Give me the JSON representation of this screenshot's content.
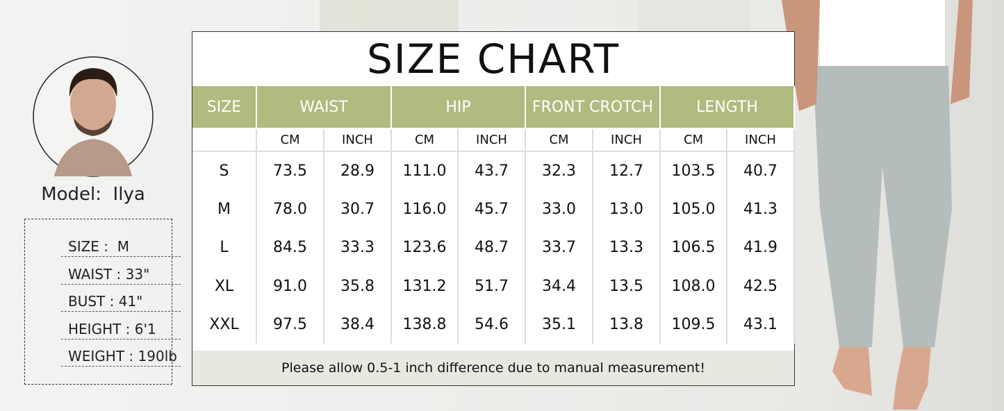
{
  "title": "SIZE CHART",
  "model": {
    "label": "Model:  Ilya",
    "stats": [
      "SIZE :  M",
      "WAIST : 33\"",
      "BUST : 41\"",
      "HEIGHT : 6'1",
      "WEIGHT : 190lb"
    ]
  },
  "table": {
    "groups": [
      "SIZE",
      "WAIST",
      "HIP",
      "FRONT CROTCH",
      "LENGTH"
    ],
    "units": [
      "CM",
      "INCH",
      "CM",
      "INCH",
      "CM",
      "INCH",
      "CM",
      "INCH"
    ],
    "rows": [
      [
        "S",
        "73.5",
        "28.9",
        "111.0",
        "43.7",
        "32.3",
        "12.7",
        "103.5",
        "40.7"
      ],
      [
        "M",
        "78.0",
        "30.7",
        "116.0",
        "45.7",
        "33.0",
        "13.0",
        "105.0",
        "41.3"
      ],
      [
        "L",
        "84.5",
        "33.3",
        "123.6",
        "48.7",
        "33.7",
        "13.3",
        "106.5",
        "41.9"
      ],
      [
        "XL",
        "91.0",
        "35.8",
        "131.2",
        "51.7",
        "34.4",
        "13.5",
        "108.0",
        "42.5"
      ],
      [
        "XXL",
        "97.5",
        "38.4",
        "138.8",
        "54.6",
        "35.1",
        "13.8",
        "109.5",
        "43.1"
      ]
    ],
    "note": "Please allow 0.5-1 inch difference due to manual measurement!"
  }
}
